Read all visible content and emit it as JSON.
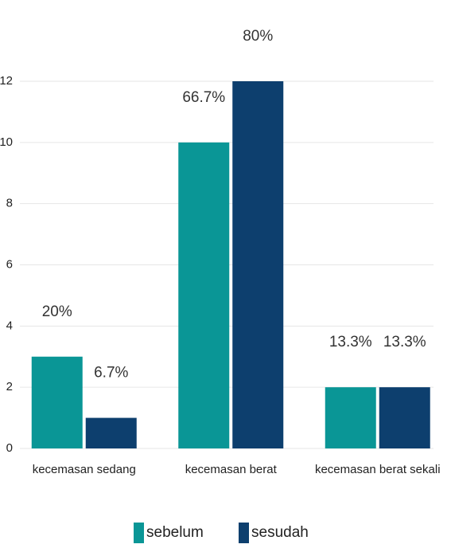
{
  "chart_data": {
    "type": "bar",
    "categories": [
      "kecemasan sedang",
      "kecemasan berat",
      "kecemasan berat sekali"
    ],
    "series": [
      {
        "name": "sebelum",
        "color": "#0a9696",
        "values": [
          3,
          10,
          2
        ],
        "value_labels": [
          "20%",
          "66.7%",
          "13.3%"
        ]
      },
      {
        "name": "sesudah",
        "color": "#0d3f6e",
        "values": [
          1,
          12,
          2
        ],
        "value_labels": [
          "6.7%",
          "80%",
          "13.3%"
        ]
      }
    ],
    "ylim": [
      0,
      12
    ],
    "yticks": [
      0,
      2,
      4,
      6,
      8,
      10,
      12
    ],
    "grid": true,
    "legend": "bottom"
  }
}
